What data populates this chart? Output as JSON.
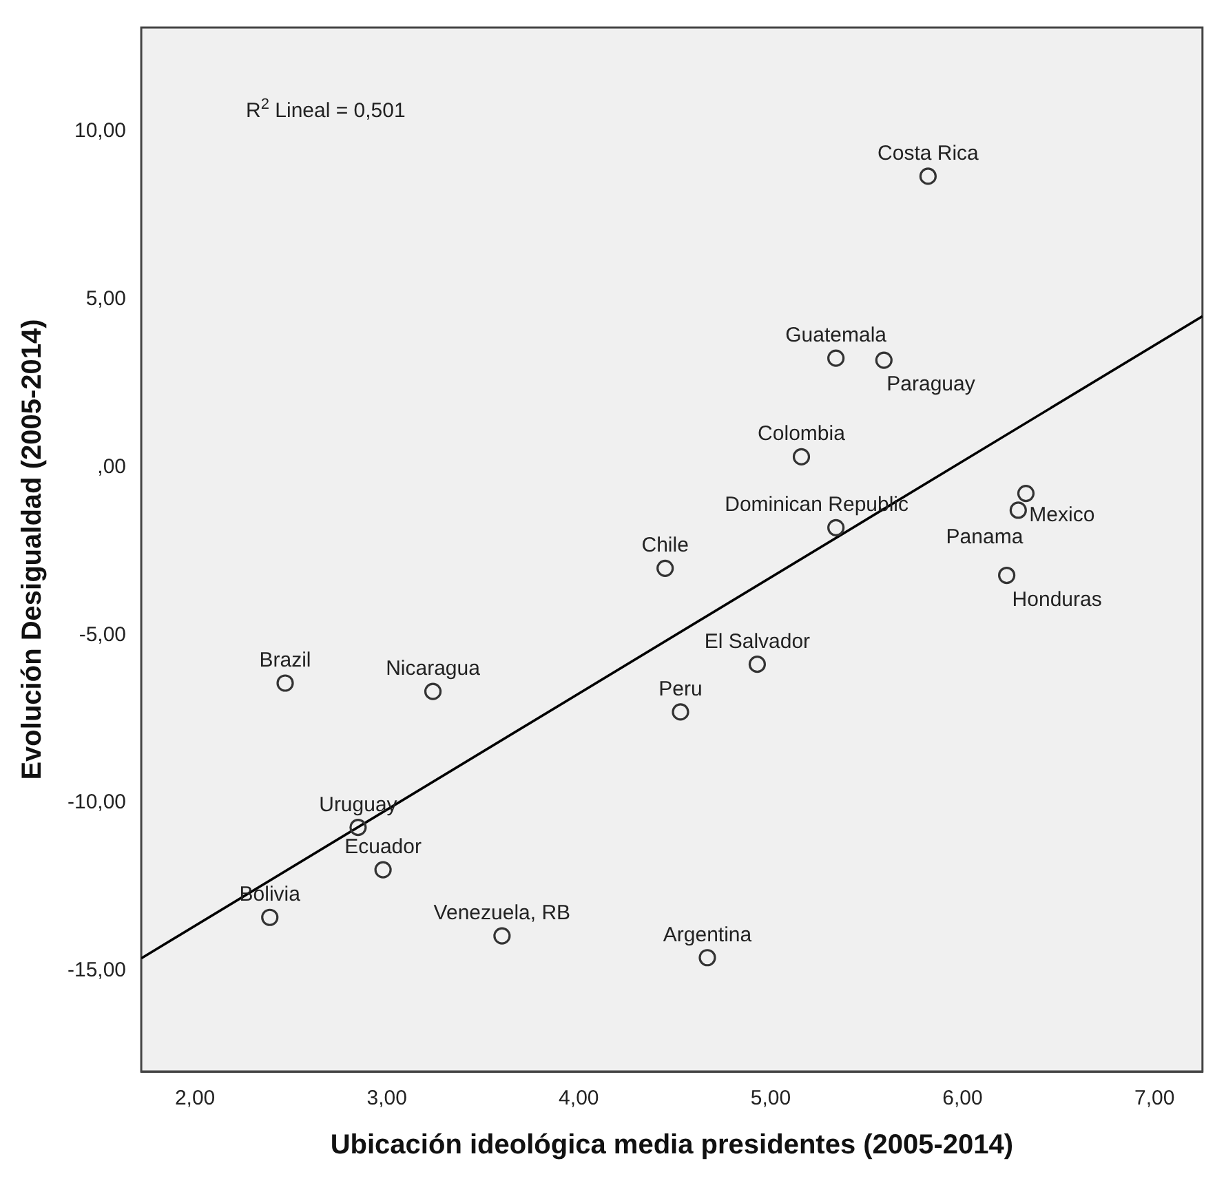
{
  "chart_data": {
    "type": "scatter",
    "xlabel": "Ubicación ideológica media presidentes (2005-2014)",
    "ylabel": "Evolución Desigualdad (2005-2014)",
    "xlim": [
      1.72,
      7.25
    ],
    "ylim": [
      -18,
      13.1
    ],
    "xticks": [
      {
        "value": 2,
        "label": "2,00"
      },
      {
        "value": 3,
        "label": "3,00"
      },
      {
        "value": 4,
        "label": "4,00"
      },
      {
        "value": 5,
        "label": "5,00"
      },
      {
        "value": 6,
        "label": "6,00"
      },
      {
        "value": 7,
        "label": "7,00"
      }
    ],
    "yticks": [
      {
        "value": -15,
        "label": "-15,00"
      },
      {
        "value": -10,
        "label": "-10,00"
      },
      {
        "value": -5,
        "label": "-5,00"
      },
      {
        "value": 0,
        "label": ",00"
      },
      {
        "value": 5,
        "label": "5,00"
      },
      {
        "value": 10,
        "label": "10,00"
      }
    ],
    "grid": false,
    "legend": false,
    "marker": "circle",
    "series": [
      {
        "type": "scatter",
        "color": "#333333",
        "x": [
          5.82,
          5.34,
          5.59,
          5.16,
          5.34,
          6.33,
          6.29,
          4.45,
          6.23,
          4.93,
          4.53,
          4.67,
          2.47,
          3.24,
          2.85,
          2.98,
          2.39,
          3.6
        ],
        "values": [
          8.67,
          3.25,
          3.19,
          0.31,
          -1.8,
          -0.78,
          -1.28,
          -3.01,
          -3.22,
          -5.87,
          -7.29,
          -14.61,
          -6.43,
          -6.68,
          -10.73,
          -11.99,
          -13.41,
          -13.96
        ]
      },
      {
        "type": "line",
        "color": "#000000",
        "marker": "none",
        "x": [
          1.72,
          7.25
        ],
        "values": [
          -14.63,
          4.5
        ]
      }
    ],
    "annotations": [
      "R$^{2}$ Lineal = 0,501",
      {
        "text": "Costa Rica",
        "x": 5.82,
        "y": 8.67
      },
      {
        "text": "Guatemala",
        "x": 5.34,
        "y": 3.25
      },
      {
        "text": "Paraguay",
        "x": 5.59,
        "y": 3.19
      },
      {
        "text": "Colombia",
        "x": 5.16,
        "y": 0.31
      },
      {
        "text": "Dominican Republic",
        "x": 5.34,
        "y": -1.8
      },
      {
        "text": "Panama",
        "x": 6.33,
        "y": -0.78
      },
      {
        "text": "Mexico",
        "x": 6.29,
        "y": -1.28
      },
      {
        "text": "Chile",
        "x": 4.45,
        "y": -3.01
      },
      {
        "text": "Honduras",
        "x": 6.23,
        "y": -3.22
      },
      {
        "text": "El Salvador",
        "x": 4.93,
        "y": -5.87
      },
      {
        "text": "Peru",
        "x": 4.53,
        "y": -7.29
      },
      {
        "text": "Argentina",
        "x": 4.67,
        "y": -14.61
      },
      {
        "text": "Brazil",
        "x": 2.47,
        "y": -6.43
      },
      {
        "text": "Nicaragua",
        "x": 3.24,
        "y": -6.68
      },
      {
        "text": "Uruguay",
        "x": 2.85,
        "y": -10.73
      },
      {
        "text": "Ecuador",
        "x": 2.98,
        "y": -11.99
      },
      {
        "text": "Bolivia",
        "x": 2.39,
        "y": -13.41
      },
      {
        "text": "Venezuela, RB",
        "x": 3.6,
        "y": -13.96
      }
    ]
  }
}
